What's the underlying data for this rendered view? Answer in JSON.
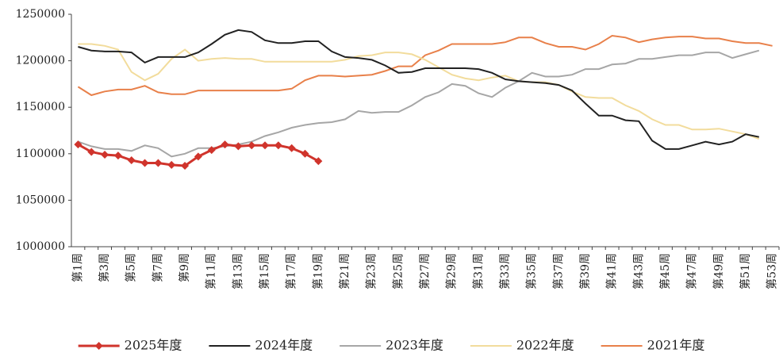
{
  "chart_data": {
    "type": "line",
    "categories": [
      "第1周",
      null,
      "第3周",
      null,
      "第5周",
      null,
      "第7周",
      null,
      "第9周",
      null,
      "第11周",
      null,
      "第13周",
      null,
      "第15周",
      null,
      "第17周",
      null,
      "第19周",
      null,
      "第21周",
      null,
      "第23周",
      null,
      "第25周",
      null,
      "第27周",
      null,
      "第29周",
      null,
      "第31周",
      null,
      "第33周",
      null,
      "第35周",
      null,
      "第37周",
      null,
      "第39周",
      null,
      "第41周",
      null,
      "第43周",
      null,
      "第45周",
      null,
      "第47周",
      null,
      "第49周",
      null,
      "第51周",
      null,
      "第53周"
    ],
    "ylim": [
      1000000,
      1250000
    ],
    "yticks": [
      1000000,
      1050000,
      1100000,
      1150000,
      1200000,
      1250000
    ],
    "grid": false,
    "legend": "bottom",
    "series": [
      {
        "name": "2025年度",
        "color": "#d0342c",
        "marker": "diamond",
        "values": [
          1110000,
          1102000,
          1099000,
          1098000,
          1093000,
          1090000,
          1090000,
          1088000,
          1087000,
          1097000,
          1104000,
          1110000,
          1108000,
          1109000,
          1109000,
          1109000,
          1106000,
          1100000,
          1092000,
          null,
          null,
          null,
          null,
          null,
          null,
          null,
          null,
          null,
          null,
          null,
          null,
          null,
          null,
          null,
          null,
          null,
          null,
          null,
          null,
          null,
          null,
          null,
          null,
          null,
          null,
          null,
          null,
          null,
          null,
          null,
          null,
          null,
          null
        ]
      },
      {
        "name": "2024年度",
        "color": "#222222",
        "values": [
          1215000,
          1211000,
          1210000,
          1210000,
          1209000,
          1198000,
          1204000,
          1204000,
          1204000,
          1209000,
          1218000,
          1228000,
          1233000,
          1231000,
          1222000,
          1219000,
          1219000,
          1221000,
          1221000,
          1210000,
          1204000,
          1203000,
          1201000,
          1195000,
          1187000,
          1188000,
          1192000,
          1192000,
          1192000,
          1192000,
          1191000,
          1187000,
          1180000,
          1178000,
          1177000,
          1176000,
          1174000,
          1168000,
          1154000,
          1141000,
          1141000,
          1136000,
          1135000,
          1114000,
          1105000,
          1105000,
          1109000,
          1113000,
          1110000,
          1113000,
          1121000,
          1118000,
          null
        ]
      },
      {
        "name": "2023年度",
        "color": "#a6a6a6",
        "values": [
          1113000,
          1108000,
          1105000,
          1105000,
          1103000,
          1109000,
          1106000,
          1097000,
          1100000,
          1106000,
          1106000,
          1108000,
          1110000,
          1113000,
          1119000,
          1123000,
          1128000,
          1131000,
          1133000,
          1134000,
          1137000,
          1146000,
          1144000,
          1145000,
          1145000,
          1152000,
          1161000,
          1166000,
          1175000,
          1173000,
          1165000,
          1161000,
          1171000,
          1178000,
          1187000,
          1183000,
          1183000,
          1185000,
          1191000,
          1191000,
          1196000,
          1197000,
          1202000,
          1202000,
          1204000,
          1206000,
          1206000,
          1209000,
          1209000,
          1203000,
          1207000,
          1211000,
          null
        ]
      },
      {
        "name": "2022年度",
        "color": "#f2dc9c",
        "values": [
          1218000,
          1218000,
          1216000,
          1212000,
          1188000,
          1179000,
          1186000,
          1202000,
          1212000,
          1200000,
          1202000,
          1203000,
          1202000,
          1202000,
          1199000,
          1199000,
          1199000,
          1199000,
          1199000,
          1199000,
          1201000,
          1205000,
          1206000,
          1209000,
          1209000,
          1207000,
          1201000,
          1193000,
          1185000,
          1181000,
          1179000,
          1182000,
          1184000,
          1178000,
          1177000,
          1177000,
          1174000,
          1167000,
          1161000,
          1160000,
          1160000,
          1152000,
          1146000,
          1137000,
          1131000,
          1131000,
          1126000,
          1126000,
          1127000,
          1124000,
          1121000,
          1116000,
          null
        ]
      },
      {
        "name": "2021年度",
        "color": "#e8804a",
        "values": [
          1172000,
          1163000,
          1167000,
          1169000,
          1169000,
          1173000,
          1166000,
          1164000,
          1164000,
          1168000,
          1168000,
          1168000,
          1168000,
          1168000,
          1168000,
          1168000,
          1170000,
          1179000,
          1184000,
          1184000,
          1183000,
          1184000,
          1185000,
          1189000,
          1194000,
          1194000,
          1206000,
          1211000,
          1218000,
          1218000,
          1218000,
          1218000,
          1220000,
          1225000,
          1225000,
          1219000,
          1215000,
          1215000,
          1212000,
          1218000,
          1227000,
          1225000,
          1220000,
          1223000,
          1225000,
          1226000,
          1226000,
          1224000,
          1224000,
          1221000,
          1219000,
          1219000,
          1216000
        ]
      }
    ]
  }
}
